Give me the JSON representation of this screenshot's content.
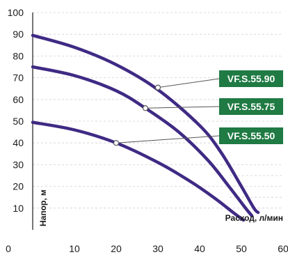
{
  "chart_data": {
    "type": "line",
    "xlabel": "Расход, л/мин",
    "ylabel": "Напор, м",
    "xlim": [
      0,
      60
    ],
    "ylim": [
      0,
      100
    ],
    "x_ticks": [
      "0",
      "10",
      "20",
      "30",
      "40",
      "50",
      "60"
    ],
    "y_ticks": [
      "10",
      "20",
      "30",
      "40",
      "50",
      "60",
      "70",
      "80",
      "90",
      "100"
    ],
    "grid": "dashed horizontal",
    "series": [
      {
        "name": "VF.S.55.90",
        "color": "#3f2a84",
        "marker_point": [
          30,
          65.5
        ],
        "points": [
          [
            0,
            89.5
          ],
          [
            10,
            84
          ],
          [
            20,
            76
          ],
          [
            30,
            64.5
          ],
          [
            40,
            48
          ],
          [
            45,
            36
          ],
          [
            50,
            20
          ],
          [
            53,
            10
          ],
          [
            54,
            8
          ]
        ]
      },
      {
        "name": "VF.S.55.75",
        "color": "#3f2a84",
        "marker_point": [
          27,
          56
        ],
        "points": [
          [
            0,
            75
          ],
          [
            10,
            71
          ],
          [
            20,
            64
          ],
          [
            27,
            56
          ],
          [
            35,
            45
          ],
          [
            42,
            32
          ],
          [
            47,
            20
          ],
          [
            51,
            10
          ],
          [
            52.5,
            6.5
          ]
        ]
      },
      {
        "name": "VF.S.55.50",
        "color": "#3f2a84",
        "marker_point": [
          20,
          40
        ],
        "points": [
          [
            0,
            49.5
          ],
          [
            10,
            46
          ],
          [
            20,
            40
          ],
          [
            30,
            31
          ],
          [
            38,
            22
          ],
          [
            44,
            14
          ],
          [
            48,
            8
          ],
          [
            50.5,
            4.5
          ]
        ]
      }
    ],
    "tag_color": "#1f7a43"
  }
}
